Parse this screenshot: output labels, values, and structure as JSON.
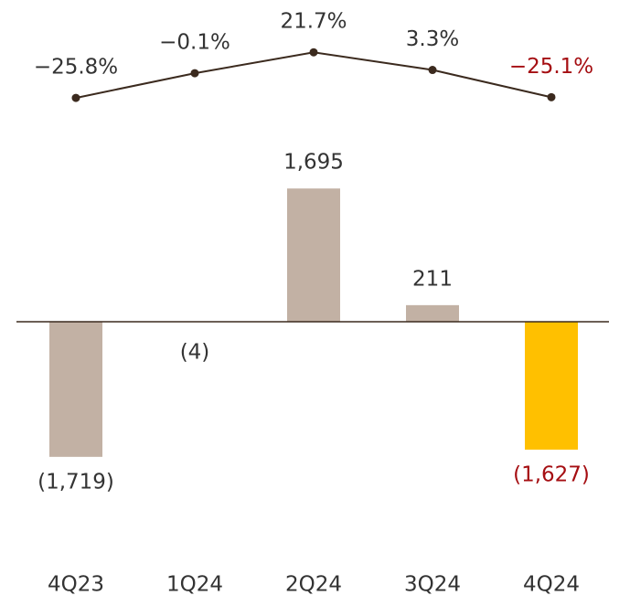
{
  "chart_data": [
    {
      "type": "bar",
      "categories": [
        "4Q23",
        "1Q24",
        "2Q24",
        "3Q24",
        "4Q24"
      ],
      "values": [
        -1719,
        -4,
        1695,
        211,
        -1627
      ],
      "value_labels": [
        "(1,719)",
        "(4)",
        "1,695",
        "211",
        "(1,627)"
      ],
      "colors": [
        "#c2b1a4",
        "#c2b1a4",
        "#c2b1a4",
        "#c2b1a4",
        "#ffc000"
      ],
      "label_colors": [
        "#333333",
        "#333333",
        "#333333",
        "#333333",
        "#a50e12"
      ],
      "ylim": [
        -2000,
        2000
      ]
    },
    {
      "type": "line",
      "values": [
        -25.8,
        -0.1,
        21.7,
        3.3,
        -25.1
      ],
      "value_labels": [
        "−25.8%",
        "−0.1%",
        "21.7%",
        "3.3%",
        "−25.1%"
      ],
      "color": "#3b2a1e",
      "label_colors": [
        "#333333",
        "#333333",
        "#333333",
        "#333333",
        "#a50e12"
      ],
      "ylim": [
        -30,
        30
      ]
    }
  ]
}
